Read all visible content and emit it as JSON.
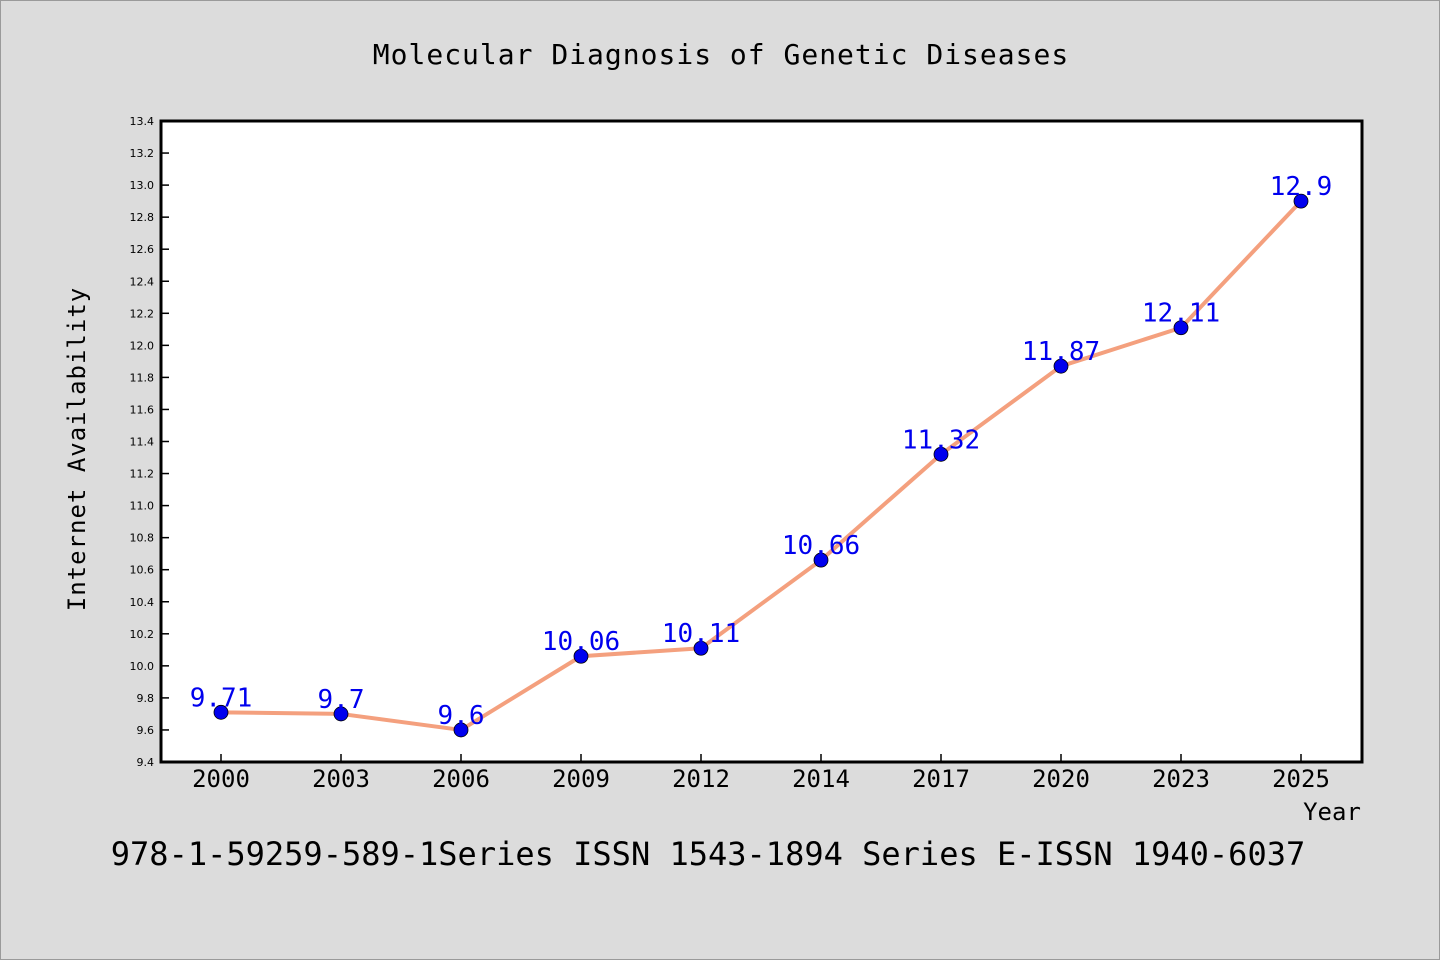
{
  "chart_data": {
    "type": "line",
    "title": "Molecular Diagnosis of Genetic Diseases",
    "xlabel": "Year",
    "ylabel": "Internet Availability",
    "categories": [
      "2000",
      "2003",
      "2006",
      "2009",
      "2012",
      "2014",
      "2017",
      "2020",
      "2023",
      "2025"
    ],
    "series": [
      {
        "values": [
          9.71,
          9.7,
          9.6,
          10.06,
          10.11,
          10.66,
          11.32,
          11.87,
          12.11,
          12.9
        ],
        "labels": [
          "9.71",
          "9.7",
          "9.6",
          "10.06",
          "10.11",
          "10.66",
          "11.32",
          "11.87",
          "12.11",
          "12.9"
        ],
        "line_color": "#f4a07e",
        "marker_color": "#0000ee",
        "label_color": "#0000ee"
      }
    ],
    "ylim": [
      9.4,
      13.4
    ],
    "y_ticks": [
      "9.4",
      "9.6",
      "9.8",
      "10.0",
      "10.2",
      "10.4",
      "10.6",
      "10.8",
      "11.0",
      "11.2",
      "11.4",
      "11.6",
      "11.8",
      "12.0",
      "12.2",
      "12.4",
      "12.6",
      "12.8",
      "13.0",
      "13.2",
      "13.4"
    ],
    "grid": false,
    "legend": "none"
  },
  "footer_text": "978-1-59259-589-1Series ISSN 1543-1894 Series E-ISSN 1940-6037",
  "colors": {
    "background": "#dcdcdc",
    "plot_area": "#ffffff",
    "axis": "#000000"
  }
}
